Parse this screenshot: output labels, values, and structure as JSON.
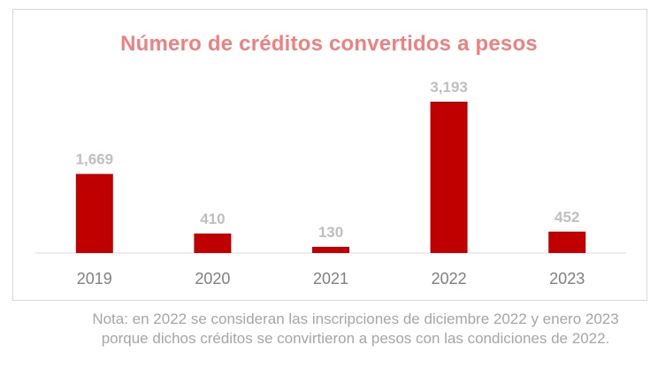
{
  "chart_data": {
    "type": "bar",
    "title": "Número de créditos convertidos a pesos",
    "categories": [
      "2019",
      "2020",
      "2021",
      "2022",
      "2023"
    ],
    "values": [
      1669,
      410,
      130,
      3193,
      452
    ],
    "labels": [
      "1,669",
      "410",
      "130",
      "3,193",
      "452"
    ],
    "xlabel": "",
    "ylabel": "",
    "ylim": [
      0,
      3300
    ],
    "grid": false,
    "legend": "none",
    "colors": {
      "bar": "#c00000",
      "title": "#f08080",
      "label": "#bfbfbf",
      "tick": "#808080"
    }
  },
  "note": {
    "line1": "Nota: en 2022 se consideran las inscripciones de diciembre 2022 y enero 2023",
    "line2": "porque dichos créditos se convirtieron a pesos con las condiciones de 2022."
  }
}
